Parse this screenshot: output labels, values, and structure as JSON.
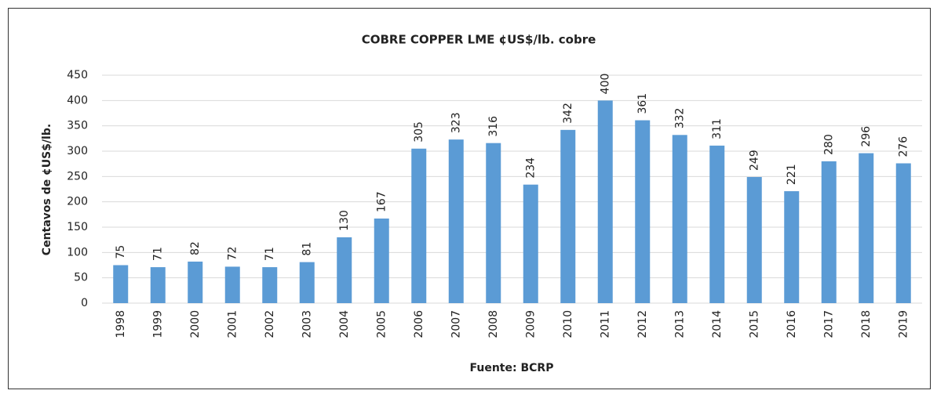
{
  "chart_data": {
    "type": "bar",
    "title": "COBRE COPPER LME ¢US$/lb. cobre",
    "y_label": "Centavos de ¢US$/lb.",
    "x_label": "Fuente: BCRP",
    "categories": [
      "1998",
      "1999",
      "2000",
      "2001",
      "2002",
      "2003",
      "2004",
      "2005",
      "2006",
      "2007",
      "2008",
      "2009",
      "2010",
      "2011",
      "2012",
      "2013",
      "2014",
      "2015",
      "2016",
      "2017",
      "2018",
      "2019"
    ],
    "values": [
      75,
      71,
      82,
      72,
      71,
      81,
      130,
      167,
      305,
      323,
      316,
      234,
      342,
      400,
      361,
      332,
      311,
      249,
      221,
      280,
      296,
      276
    ],
    "color": "#5b9bd5",
    "ylim": [
      0,
      450
    ],
    "yticks": [
      0,
      50,
      100,
      150,
      200,
      250,
      300,
      350,
      400,
      450
    ],
    "grid": true
  }
}
